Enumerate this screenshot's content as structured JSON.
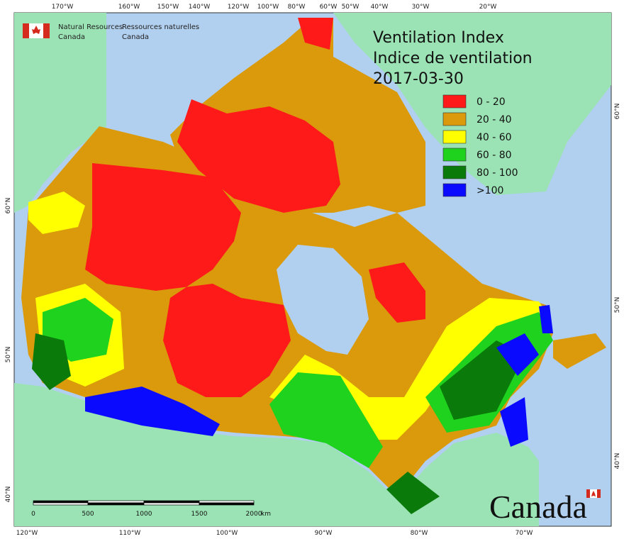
{
  "logo": {
    "en": [
      "Natural Resources",
      "Canada"
    ],
    "fr": [
      "Ressources naturelles",
      "Canada"
    ]
  },
  "title": [
    "Ventilation Index",
    "Indice de ventilation",
    "2017-03-30"
  ],
  "legend": [
    {
      "label": "0 - 20",
      "color": "#ff1a1a"
    },
    {
      "label": "20 - 40",
      "color": "#da9a0c"
    },
    {
      "label": "40 - 60",
      "color": "#ffff00"
    },
    {
      "label": "60 - 80",
      "color": "#1ed21e"
    },
    {
      "label": "80 - 100",
      "color": "#0a7a0a"
    },
    {
      "label": ">100",
      "color": "#0a0aff"
    }
  ],
  "graticule": {
    "top": [
      "170°W",
      "160°W",
      "150°W",
      "140°W",
      "120°W",
      "100°W",
      "80°W",
      "60°W",
      "50°W",
      "40°W",
      "30°W",
      "20°W"
    ],
    "bottom": [
      "120°W",
      "110°W",
      "100°W",
      "90°W",
      "80°W",
      "70°W"
    ],
    "left": [
      "60°N",
      "50°N",
      "40°N"
    ],
    "right": [
      "60°N",
      "50°N",
      "40°N"
    ]
  },
  "scale_bar": {
    "labels": [
      "0",
      "500",
      "1000",
      "1500",
      "2000"
    ],
    "unit": "km"
  },
  "wordmark": "Canada"
}
